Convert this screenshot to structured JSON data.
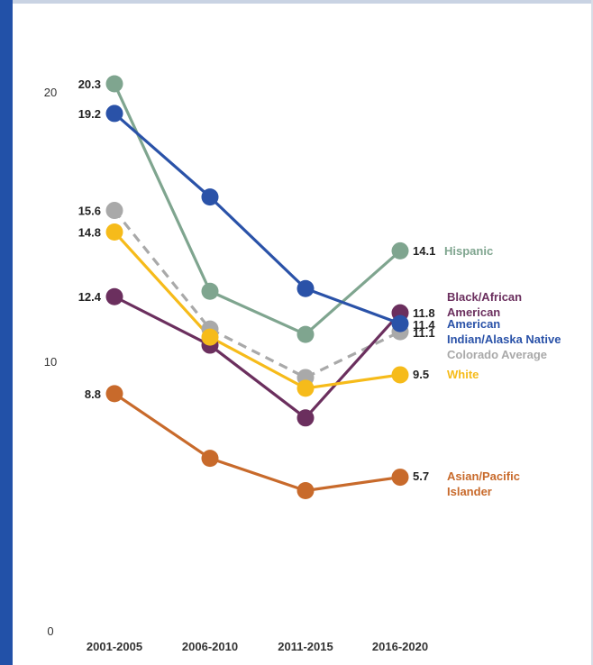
{
  "chart_data": {
    "type": "line",
    "title": "",
    "xlabel": "",
    "ylabel": "",
    "categories": [
      "2001-2005",
      "2006-2010",
      "2011-2015",
      "2016-2020"
    ],
    "ylim": [
      0,
      20
    ],
    "yticks": [
      0,
      10,
      20
    ],
    "grid": false,
    "legend": "labels at right end of lines",
    "series": [
      {
        "key": "hispanic",
        "name": "Hispanic",
        "label_lines": [
          "Hispanic"
        ],
        "color": "#7fa58f",
        "dashed": false,
        "values": [
          20.3,
          12.6,
          11.0,
          14.1
        ],
        "labels": [
          "20.3",
          "",
          "",
          "14.1"
        ]
      },
      {
        "key": "aian",
        "name": "American Indian/Alaska Native",
        "label_lines": [
          "American",
          "Indian/Alaska Native"
        ],
        "color": "#2a52a8",
        "dashed": false,
        "values": [
          19.2,
          16.1,
          12.7,
          11.4
        ],
        "labels": [
          "19.2",
          "",
          "",
          "11.4"
        ]
      },
      {
        "key": "colorado",
        "name": "Colorado Average",
        "label_lines": [
          "Colorado Average"
        ],
        "color": "#a9a9a9",
        "dashed": true,
        "values": [
          15.6,
          11.2,
          9.4,
          11.1
        ],
        "labels": [
          "15.6",
          "",
          "",
          "11.1"
        ]
      },
      {
        "key": "white",
        "name": "White",
        "label_lines": [
          "White"
        ],
        "color": "#f6bb1a",
        "dashed": false,
        "values": [
          14.8,
          10.9,
          9.0,
          9.5
        ],
        "labels": [
          "14.8",
          "",
          "",
          "9.5"
        ]
      },
      {
        "key": "black",
        "name": "Black/African American",
        "label_lines": [
          "Black/African",
          "American"
        ],
        "color": "#6b2f5e",
        "dashed": false,
        "values": [
          12.4,
          10.6,
          7.9,
          11.8
        ],
        "labels": [
          "12.4",
          "",
          "",
          "11.8"
        ]
      },
      {
        "key": "asian",
        "name": "Asian/Pacific Islander",
        "label_lines": [
          "Asian/Pacific",
          "Islander"
        ],
        "color": "#c86a2b",
        "dashed": false,
        "values": [
          8.8,
          6.4,
          5.2,
          5.7
        ],
        "labels": [
          "8.8",
          "",
          "",
          "5.7"
        ]
      }
    ]
  }
}
